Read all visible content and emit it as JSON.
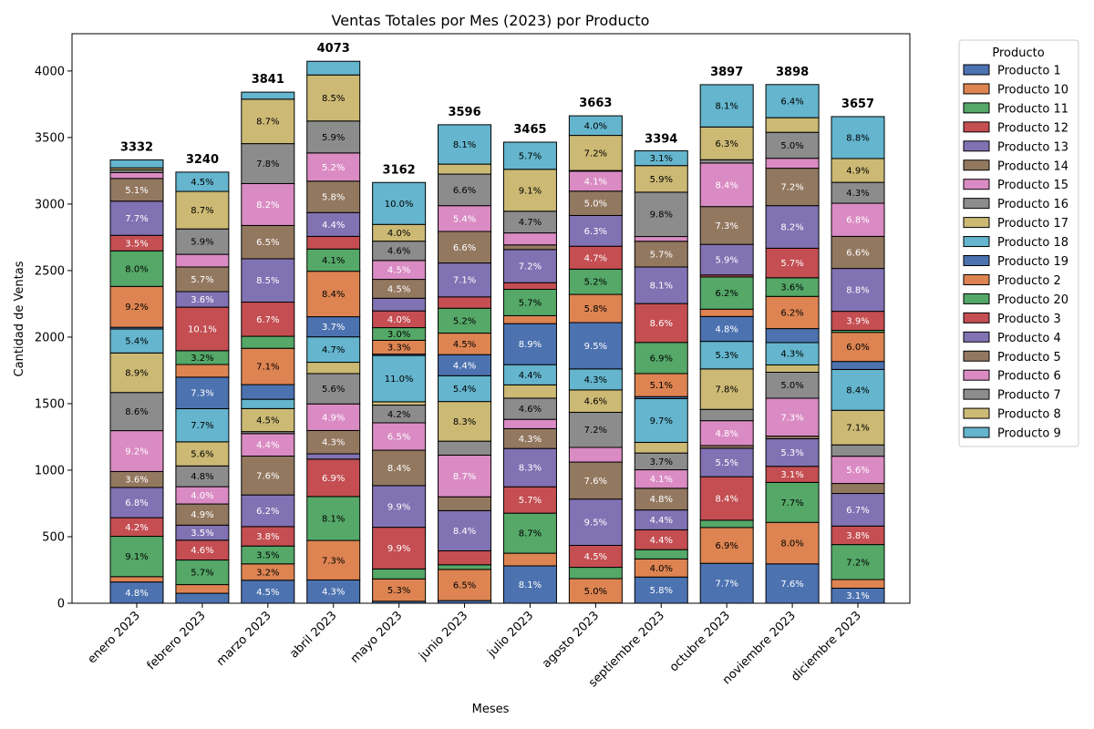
{
  "chart_data": {
    "type": "stacked_bar",
    "title": "Ventas Totales por Mes (2023) por Producto",
    "x_label": "Meses",
    "y_label": "Cantidad de Ventas",
    "legend_title": "Producto",
    "legend": "outside-right",
    "categories": [
      "enero 2023",
      "febrero 2023",
      "marzo 2023",
      "abril 2023",
      "mayo 2023",
      "junio 2023",
      "julio 2023",
      "agosto 2023",
      "septiembre 2023",
      "octubre 2023",
      "noviembre 2023",
      "diciembre 2023"
    ],
    "totals": [
      3332,
      3240,
      3841,
      4073,
      3162,
      3596,
      3465,
      3663,
      3394,
      3897,
      3898,
      3657
    ],
    "ylim": [
      0,
      4280
    ],
    "yticks": [
      0,
      500,
      1000,
      1500,
      2000,
      2500,
      3000,
      3500,
      4000
    ],
    "grid": false,
    "series": [
      {
        "name": "Producto 1",
        "color": "#4c72b0",
        "label_color": "#ffffff",
        "values": [
          160,
          75,
          173,
          175,
          15,
          20,
          281,
          2,
          197,
          300,
          296,
          113
        ],
        "percent_labels": [
          "4.8%",
          null,
          "4.5%",
          "4.3%",
          null,
          null,
          "8.1%",
          null,
          "5.8%",
          "7.7%",
          "7.6%",
          "3.1%"
        ]
      },
      {
        "name": "Producto 10",
        "color": "#dd8452",
        "label_color": "#000000",
        "values": [
          40,
          65,
          123,
          297,
          168,
          234,
          95,
          183,
          136,
          269,
          312,
          65
        ],
        "percent_labels": [
          null,
          null,
          "3.2%",
          "7.3%",
          "5.3%",
          "6.5%",
          null,
          "5.0%",
          "4.0%",
          "6.9%",
          "8.0%",
          null
        ]
      },
      {
        "name": "Producto 11",
        "color": "#55a868",
        "label_color": "#000000",
        "values": [
          303,
          185,
          134,
          330,
          75,
          35,
          301,
          85,
          70,
          55,
          300,
          263
        ],
        "percent_labels": [
          "9.1%",
          "5.7%",
          "3.5%",
          "8.1%",
          null,
          null,
          "8.7%",
          null,
          null,
          null,
          "7.7%",
          "7.2%"
        ]
      },
      {
        "name": "Producto 12",
        "color": "#c44e52",
        "label_color": "#ffffff",
        "values": [
          140,
          149,
          146,
          281,
          313,
          105,
          198,
          165,
          149,
          327,
          121,
          139
        ],
        "percent_labels": [
          "4.2%",
          "4.6%",
          "3.8%",
          "6.9%",
          "9.9%",
          null,
          "5.7%",
          "4.5%",
          "4.4%",
          "8.4%",
          "3.1%",
          "3.8%"
        ]
      },
      {
        "name": "Producto 13",
        "color": "#8172b3",
        "label_color": "#ffffff",
        "values": [
          227,
          113,
          238,
          40,
          313,
          302,
          288,
          348,
          149,
          214,
          207,
          245
        ],
        "percent_labels": [
          "6.8%",
          "3.5%",
          "6.2%",
          null,
          "9.9%",
          "8.4%",
          "8.3%",
          "9.5%",
          "4.4%",
          "5.5%",
          "5.3%",
          "6.7%"
        ]
      },
      {
        "name": "Producto 14",
        "color": "#937860",
        "label_color": "#ffffff",
        "values": [
          120,
          159,
          292,
          175,
          266,
          104,
          149,
          278,
          163,
          20,
          20,
          75
        ],
        "percent_labels": [
          "3.6%",
          "4.9%",
          "7.6%",
          "4.3%",
          "8.4%",
          null,
          "4.3%",
          "7.6%",
          "4.8%",
          null,
          null,
          null
        ]
      },
      {
        "name": "Producto 15",
        "color": "#da8bc3",
        "label_color": "#ffffff",
        "values": [
          307,
          130,
          169,
          200,
          206,
          313,
          70,
          110,
          139,
          187,
          285,
          205
        ],
        "percent_labels": [
          "9.2%",
          "4.0%",
          "4.4%",
          "4.9%",
          "6.5%",
          "8.7%",
          null,
          null,
          "4.1%",
          "4.8%",
          "7.3%",
          "5.6%"
        ]
      },
      {
        "name": "Producto 16",
        "color": "#8c8c8c",
        "label_color": "#000000",
        "values": [
          287,
          156,
          15,
          228,
          133,
          105,
          159,
          264,
          126,
          85,
          195,
          85
        ],
        "percent_labels": [
          "8.6%",
          "4.8%",
          null,
          "5.6%",
          "4.2%",
          null,
          "4.6%",
          "7.2%",
          "3.7%",
          null,
          "5.0%",
          null
        ]
      },
      {
        "name": "Producto 17",
        "color": "#ccb974",
        "label_color": "#000000",
        "values": [
          297,
          181,
          173,
          85,
          25,
          298,
          100,
          168,
          80,
          304,
          55,
          260
        ],
        "percent_labels": [
          "8.9%",
          "5.6%",
          "4.5%",
          null,
          null,
          "8.3%",
          null,
          "4.6%",
          null,
          "7.8%",
          null,
          "7.1%"
        ]
      },
      {
        "name": "Producto 18",
        "color": "#64b5cd",
        "label_color": "#000000",
        "values": [
          180,
          249,
          70,
          191,
          348,
          194,
          152,
          158,
          329,
          207,
          168,
          307
        ],
        "percent_labels": [
          "5.4%",
          "7.7%",
          null,
          "4.7%",
          "11.0%",
          "5.4%",
          "4.4%",
          "4.3%",
          "9.7%",
          "5.3%",
          "4.3%",
          "8.4%"
        ]
      },
      {
        "name": "Producto 19",
        "color": "#4c72b0",
        "label_color": "#ffffff",
        "values": [
          13,
          237,
          110,
          151,
          10,
          158,
          308,
          348,
          15,
          187,
          105,
          60
        ],
        "percent_labels": [
          null,
          "7.3%",
          null,
          "3.7%",
          null,
          "4.4%",
          "8.9%",
          "9.5%",
          null,
          "4.8%",
          null,
          null
        ]
      },
      {
        "name": "Producto 2",
        "color": "#dd8452",
        "label_color": "#000000",
        "values": [
          307,
          95,
          273,
          342,
          104,
          162,
          60,
          212,
          173,
          55,
          242,
          219
        ],
        "percent_labels": [
          "9.2%",
          null,
          "7.1%",
          "8.4%",
          "3.3%",
          "4.5%",
          null,
          "5.8%",
          "5.1%",
          null,
          "6.2%",
          "6.0%"
        ]
      },
      {
        "name": "Producto 20",
        "color": "#55a868",
        "label_color": "#000000",
        "values": [
          267,
          104,
          90,
          167,
          95,
          187,
          198,
          190,
          234,
          242,
          140,
          15
        ],
        "percent_labels": [
          "8.0%",
          "3.2%",
          null,
          "4.1%",
          "3.0%",
          "5.2%",
          "5.7%",
          "5.2%",
          "6.9%",
          "6.2%",
          "3.6%",
          null
        ]
      },
      {
        "name": "Producto 3",
        "color": "#c44e52",
        "label_color": "#ffffff",
        "values": [
          117,
          327,
          257,
          95,
          126,
          85,
          50,
          172,
          292,
          15,
          222,
          143
        ],
        "percent_labels": [
          "3.5%",
          "10.1%",
          "6.7%",
          null,
          "4.0%",
          null,
          null,
          "4.7%",
          "8.6%",
          null,
          "5.7%",
          "3.9%"
        ]
      },
      {
        "name": "Producto 4",
        "color": "#8172b3",
        "label_color": "#ffffff",
        "values": [
          257,
          117,
          326,
          179,
          95,
          255,
          249,
          231,
          275,
          230,
          320,
          322
        ],
        "percent_labels": [
          "7.7%",
          "3.6%",
          "8.5%",
          "4.4%",
          null,
          "7.1%",
          "7.2%",
          "6.3%",
          "8.1%",
          "5.9%",
          "8.2%",
          "8.8%"
        ]
      },
      {
        "name": "Producto 5",
        "color": "#937860",
        "label_color": "#ffffff",
        "values": [
          170,
          185,
          250,
          236,
          142,
          237,
          35,
          183,
          193,
          284,
          281,
          241
        ],
        "percent_labels": [
          "5.1%",
          "5.7%",
          "6.5%",
          "5.8%",
          "4.5%",
          "6.6%",
          null,
          "5.0%",
          "5.7%",
          "7.3%",
          "7.2%",
          "6.6%"
        ]
      },
      {
        "name": "Producto 6",
        "color": "#da8bc3",
        "label_color": "#ffffff",
        "values": [
          45,
          95,
          315,
          212,
          142,
          194,
          90,
          150,
          36,
          327,
          75,
          249
        ],
        "percent_labels": [
          null,
          null,
          "8.2%",
          "5.2%",
          "4.5%",
          "5.4%",
          null,
          "4.1%",
          null,
          "8.4%",
          null,
          "6.8%"
        ]
      },
      {
        "name": "Producto 7",
        "color": "#8c8c8c",
        "label_color": "#000000",
        "values": [
          20,
          191,
          300,
          240,
          145,
          237,
          163,
          5,
          333,
          25,
          195,
          157
        ],
        "percent_labels": [
          null,
          "5.9%",
          "7.8%",
          "5.9%",
          "4.6%",
          "6.6%",
          "4.7%",
          null,
          "9.8%",
          null,
          "5.0%",
          "4.3%"
        ]
      },
      {
        "name": "Producto 8",
        "color": "#ccb974",
        "label_color": "#000000",
        "values": [
          15,
          282,
          334,
          346,
          126,
          75,
          315,
          264,
          200,
          246,
          110,
          179
        ],
        "percent_labels": [
          null,
          "8.7%",
          "8.7%",
          "8.5%",
          "4.0%",
          null,
          "9.1%",
          "7.2%",
          "5.9%",
          "6.3%",
          null,
          "4.9%"
        ]
      },
      {
        "name": "Producto 9",
        "color": "#64b5cd",
        "label_color": "#000000",
        "values": [
          60,
          145,
          53,
          103,
          315,
          296,
          204,
          147,
          111,
          318,
          249,
          315
        ],
        "percent_labels": [
          null,
          "4.5%",
          null,
          null,
          "10.0%",
          "8.1%",
          "5.7%",
          "4.0%",
          "3.1%",
          "8.1%",
          "6.4%",
          "8.8%"
        ]
      }
    ]
  }
}
